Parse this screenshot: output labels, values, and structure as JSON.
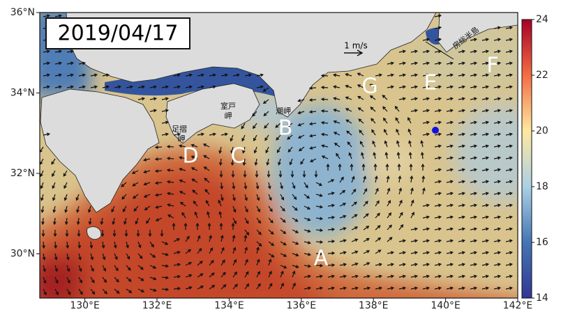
{
  "map": {
    "title": "2019/04/17",
    "xlim": [
      128.75,
      142
    ],
    "ylim": [
      28.9,
      36
    ],
    "xticks": [
      {
        "value": 130,
        "label": "130°E"
      },
      {
        "value": 132,
        "label": "132°E"
      },
      {
        "value": 134,
        "label": "134°E"
      },
      {
        "value": 136,
        "label": "136°E"
      },
      {
        "value": 138,
        "label": "138°E"
      },
      {
        "value": 140,
        "label": "140°E"
      },
      {
        "value": 142,
        "label": "142°E"
      }
    ],
    "yticks": [
      {
        "value": 30,
        "label": "30°N"
      },
      {
        "value": 32,
        "label": "32°N"
      },
      {
        "value": 34,
        "label": "34°N"
      },
      {
        "value": 36,
        "label": "36°N"
      }
    ],
    "colorbar": {
      "lim": [
        14,
        24
      ],
      "ticks": [
        14,
        16,
        18,
        20,
        22,
        24
      ]
    },
    "scale_label": "1 m/s",
    "letters": [
      "A",
      "B",
      "C",
      "D",
      "E",
      "F"
    ],
    "capes": {
      "muroto": [
        "室戸",
        "岬"
      ],
      "ashizuri": [
        "足摺",
        "岬"
      ],
      "shio": [
        "潮岬"
      ],
      "boso": [
        "房総半島"
      ]
    }
  }
}
